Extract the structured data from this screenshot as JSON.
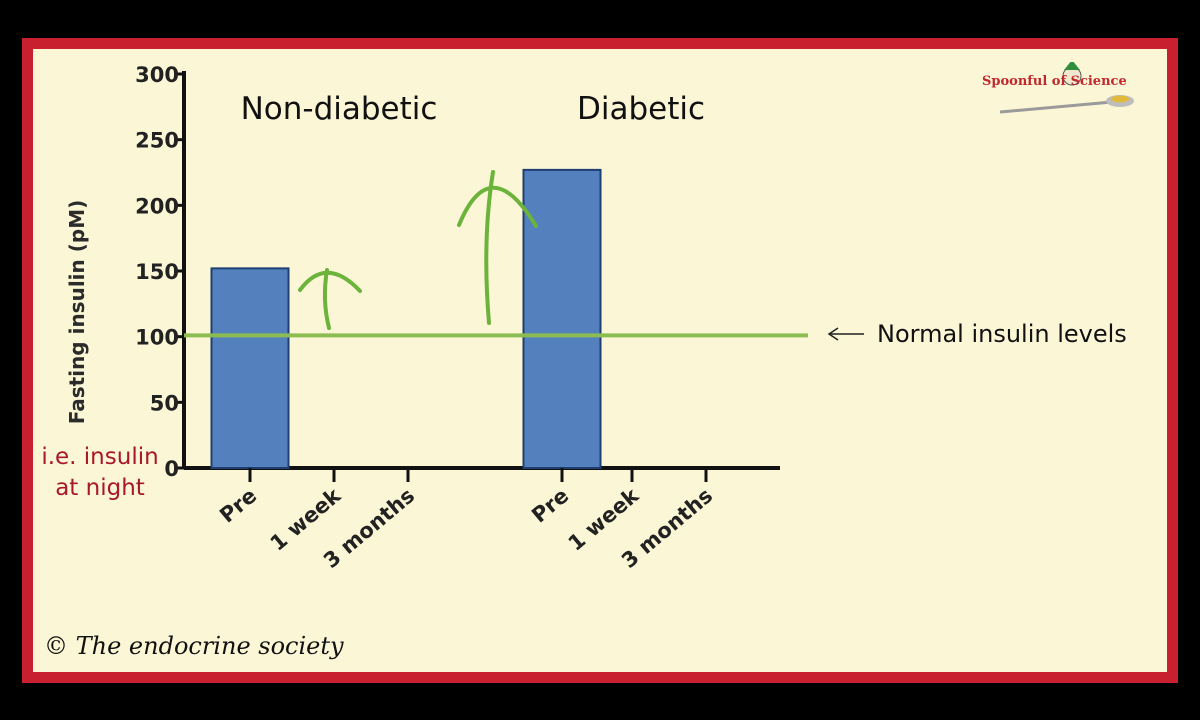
{
  "chart_data": {
    "type": "bar",
    "ylabel": "Fasting  insulin (pM)",
    "ylim": [
      0,
      300
    ],
    "yticks": [
      "0",
      "50",
      "100",
      "150",
      "200",
      "250",
      "300"
    ],
    "groups": [
      {
        "title": "Non-diabetic",
        "categories": [
          "Pre",
          "1 week",
          "3 months"
        ],
        "values": [
          152,
          null,
          null
        ]
      },
      {
        "title": "Diabetic",
        "categories": [
          "Pre",
          "1 week",
          "3 months"
        ],
        "values": [
          227,
          null,
          null
        ]
      }
    ],
    "bar_color": "#5580be",
    "reference_line": {
      "value": 101,
      "label": "Normal insulin levels",
      "color": "#8cbd50"
    },
    "annotation_arrow_color": "#6bb33a"
  },
  "side_note": [
    "i.e. insulin",
    "at night"
  ],
  "copyright": "© The endocrine society",
  "logo": {
    "text": "Spoonful of Science"
  },
  "colors": {
    "frame": "#c8202e",
    "note": "#a8172c"
  }
}
